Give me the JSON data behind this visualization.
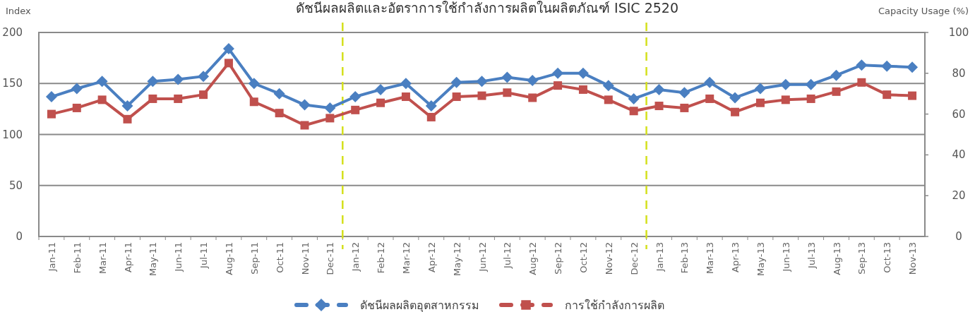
{
  "chart_data": {
    "type": "line",
    "title": "ดัชนีผลผลิตและอัตราการใช้กำลังการผลิตในผลิตภัณฑ์ ISIC 2520",
    "ylabel": "Index",
    "y2label": "Capacity Usage (%)",
    "categories": [
      "Jan-11",
      "Feb-11",
      "Mar-11",
      "Apr-11",
      "May-11",
      "Jun-11",
      "Jul-11",
      "Aug-11",
      "Sep-11",
      "Oct-11",
      "Nov-11",
      "Dec-11",
      "Jan-12",
      "Feb-12",
      "Mar-12",
      "Apr-12",
      "May-12",
      "Jun-12",
      "Jul-12",
      "Aug-12",
      "Sep-12",
      "Oct-12",
      "Nov-12",
      "Dec-12",
      "Jan-13",
      "Feb-13",
      "Mar-13",
      "Apr-13",
      "May-13",
      "Jun-13",
      "Jul-13",
      "Aug-13",
      "Sep-13",
      "Oct-13",
      "Nov-13"
    ],
    "series": [
      {
        "name": "ดัชนีผลผลิตอุตสาหกรรม",
        "color": "#4a7fc1",
        "marker": "diamond",
        "values": [
          137,
          145,
          152,
          128,
          152,
          154,
          157,
          184,
          150,
          140,
          129,
          126,
          137,
          144,
          150,
          128,
          151,
          152,
          156,
          153,
          160,
          160,
          148,
          135,
          144,
          141,
          151,
          136,
          145,
          149,
          149,
          158,
          168,
          167,
          166
        ]
      },
      {
        "name": "การใช้กำลังการผลิต",
        "color": "#c0504d",
        "marker": "square",
        "axis": "y2",
        "values": [
          60,
          63,
          67,
          57.5,
          67.5,
          67.5,
          69.5,
          85,
          66,
          60.5,
          54.5,
          58,
          62,
          65.5,
          68.5,
          58.5,
          68.5,
          69,
          70.5,
          68,
          74,
          72,
          67,
          61.5,
          64,
          63,
          67.5,
          61,
          65.5,
          67,
          67.5,
          71,
          75.5,
          69.5,
          69
        ]
      }
    ],
    "ylim": [
      0,
      200
    ],
    "yticks": [
      0,
      50,
      100,
      150,
      200
    ],
    "y2lim": [
      0,
      100
    ],
    "y2ticks": [
      0,
      20,
      40,
      60,
      80,
      100
    ],
    "grid": "y",
    "legend": "bottom",
    "line_style": "solid"
  }
}
